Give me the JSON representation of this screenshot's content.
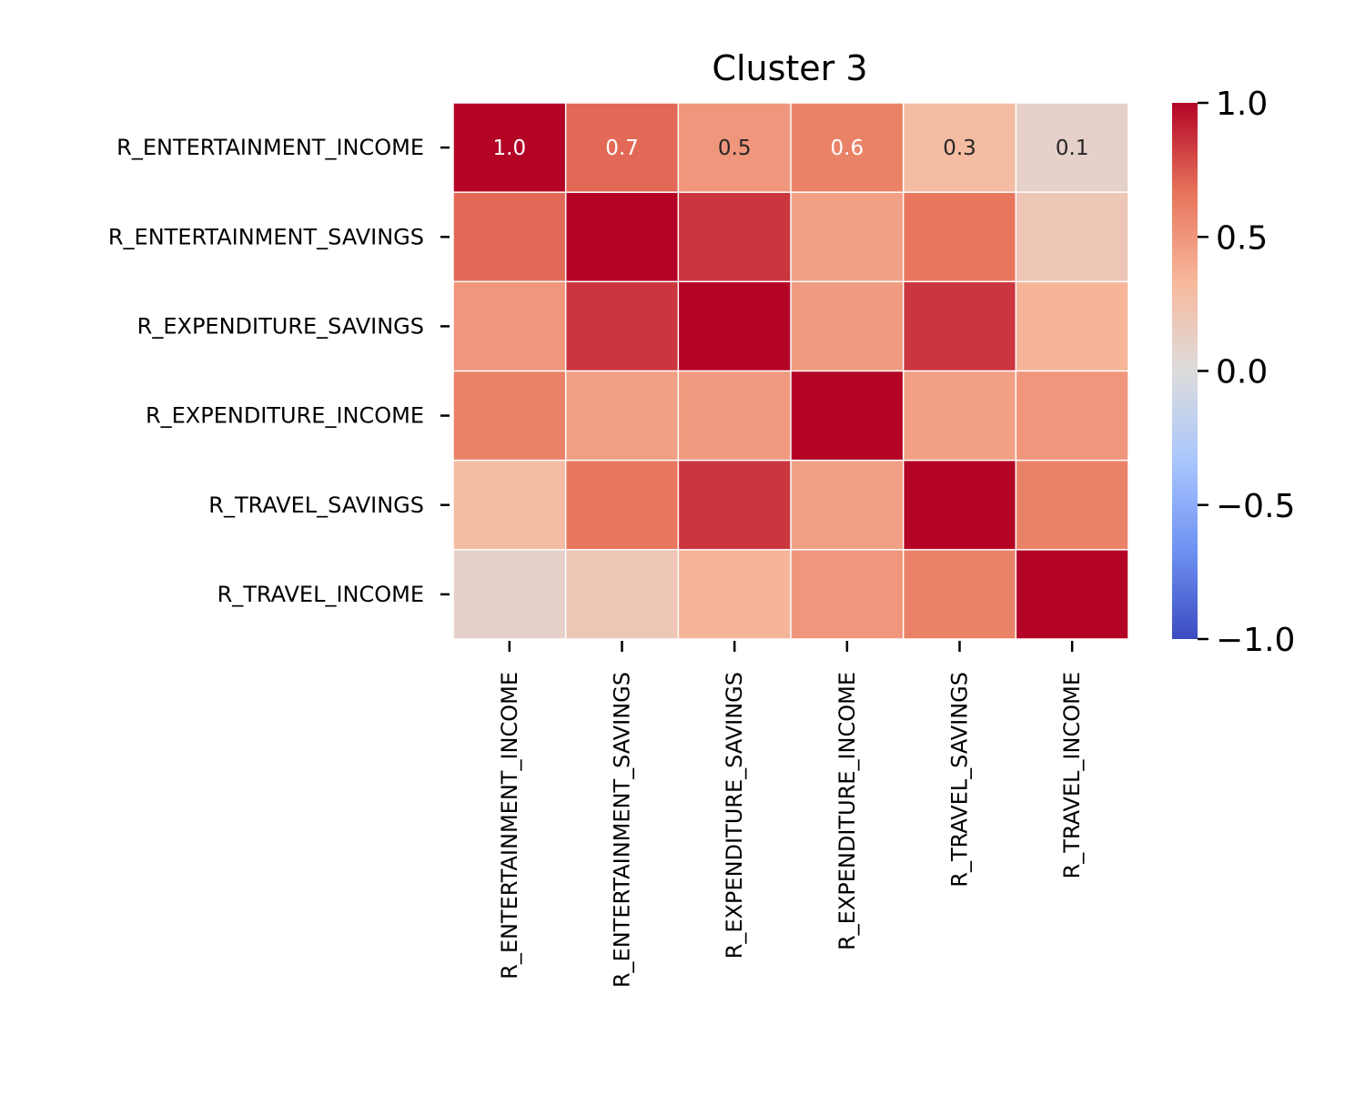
{
  "chart_data": {
    "type": "heatmap",
    "title": "Cluster 3",
    "xlabel": "",
    "ylabel": "",
    "row_labels": [
      "R_ENTERTAINMENT_INCOME",
      "R_ENTERTAINMENT_SAVINGS",
      "R_EXPENDITURE_SAVINGS",
      "R_EXPENDITURE_INCOME",
      "R_TRAVEL_SAVINGS",
      "R_TRAVEL_INCOME"
    ],
    "col_labels": [
      "R_ENTERTAINMENT_INCOME",
      "R_ENTERTAINMENT_SAVINGS",
      "R_EXPENDITURE_SAVINGS",
      "R_EXPENDITURE_INCOME",
      "R_TRAVEL_SAVINGS",
      "R_TRAVEL_INCOME"
    ],
    "values": [
      [
        1.0,
        0.7,
        0.5,
        0.6,
        0.3,
        0.1
      ],
      [
        0.7,
        1.0,
        0.85,
        0.45,
        0.65,
        0.2
      ],
      [
        0.5,
        0.85,
        1.0,
        0.48,
        0.85,
        0.35
      ],
      [
        0.6,
        0.45,
        0.48,
        1.0,
        0.45,
        0.5
      ],
      [
        0.3,
        0.65,
        0.85,
        0.45,
        1.0,
        0.6
      ],
      [
        0.1,
        0.2,
        0.35,
        0.5,
        0.6,
        1.0
      ]
    ],
    "annotations": [
      [
        "1.0",
        "0.7",
        "0.5",
        "0.6",
        "0.3",
        "0.1"
      ]
    ],
    "colorbar": {
      "vmin": -1.0,
      "vmax": 1.0,
      "ticks": [
        -1.0,
        -0.5,
        0.0,
        0.5,
        1.0
      ],
      "tick_labels": [
        "−1.0",
        "−0.5",
        "0.0",
        "0.5",
        "1.0"
      ],
      "colormap": "coolwarm",
      "colormap_stops": [
        "#3b4cc0",
        "#6f92f3",
        "#aac7fd",
        "#dddcdc",
        "#f7b89c",
        "#e7745b",
        "#b40426"
      ]
    },
    "grid_line_color": "#ffffff",
    "annotation_text_colors": {
      "dark": "#262626",
      "light": "#ffffff"
    }
  }
}
